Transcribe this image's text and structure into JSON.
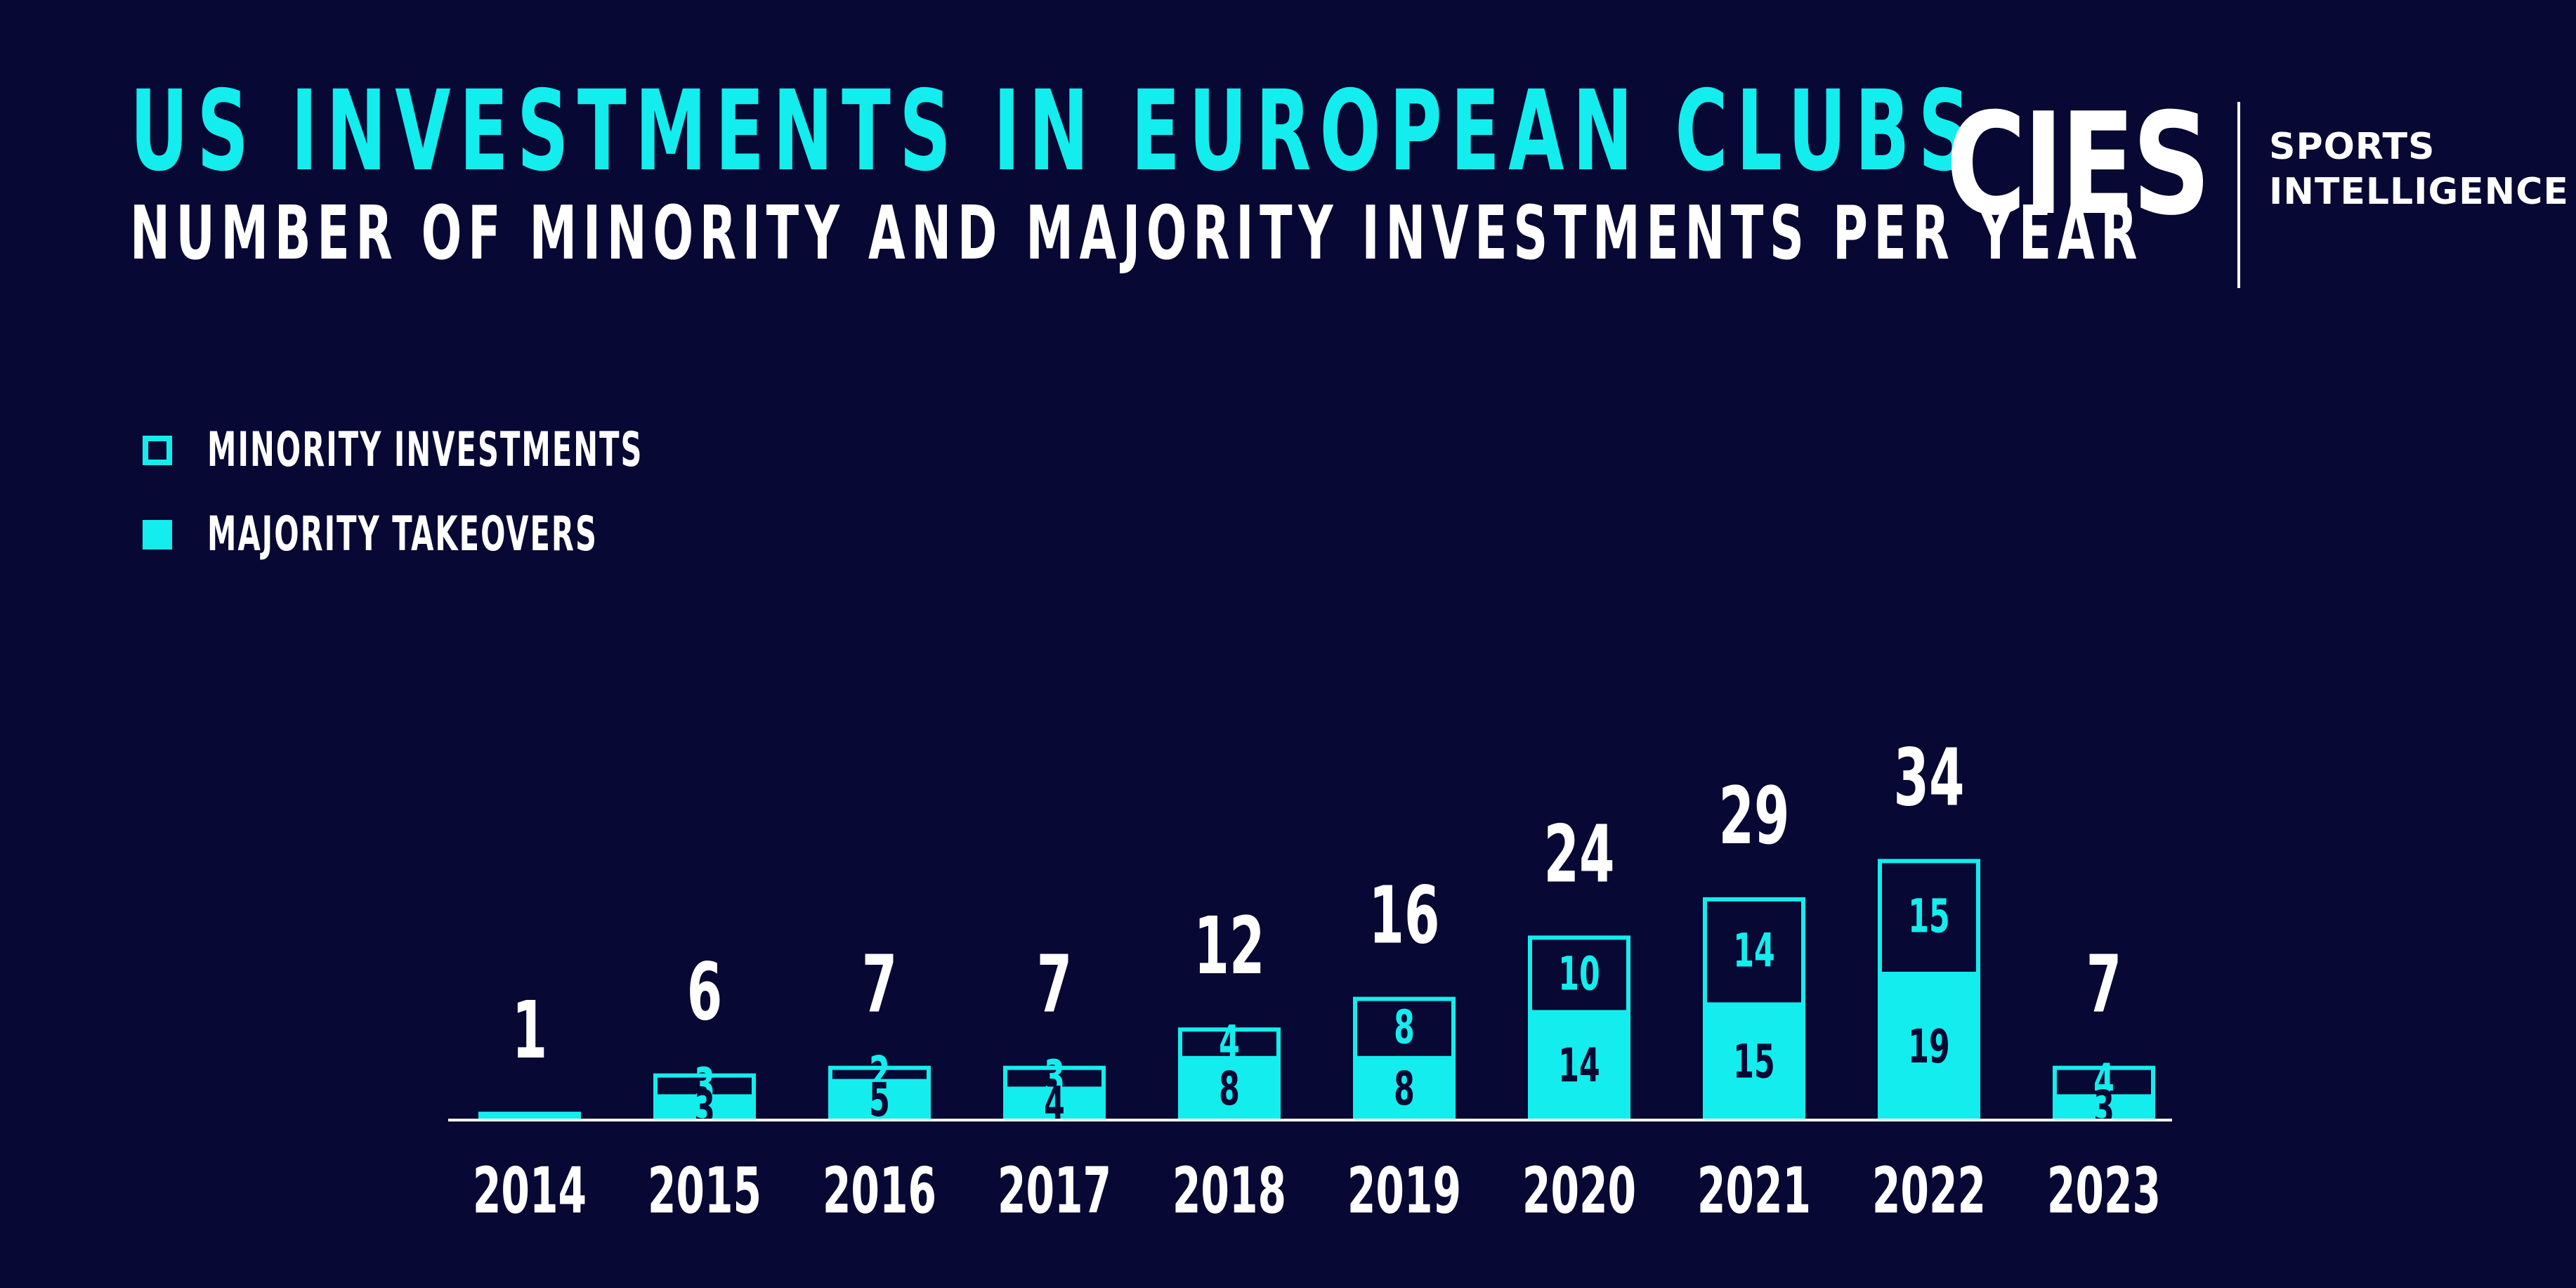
{
  "header": {
    "title": "US INVESTMENTS IN EUROPEAN CLUBS",
    "subtitle": "NUMBER OF MINORITY AND MAJORITY INVESTMENTS PER YEAR"
  },
  "logo": {
    "wordmark": "CIES",
    "tag_line1": "SPORTS",
    "tag_line2": "INTELLIGENCE"
  },
  "legend": {
    "minority": "MINORITY INVESTMENTS",
    "majority": "MAJORITY TAKEOVERS"
  },
  "colors": {
    "background": "#070833",
    "accent": "#14eded",
    "text": "#ffffff",
    "dark_text": "#070833"
  },
  "chart_data": {
    "type": "bar",
    "stacked": true,
    "title": "US INVESTMENTS IN EUROPEAN CLUBS",
    "subtitle": "NUMBER OF MINORITY AND MAJORITY INVESTMENTS PER YEAR",
    "categories": [
      "2014",
      "2015",
      "2016",
      "2017",
      "2018",
      "2019",
      "2020",
      "2021",
      "2022",
      "2023"
    ],
    "series": [
      {
        "name": "MAJORITY TAKEOVERS",
        "style": "filled",
        "values": [
          1,
          3,
          5,
          4,
          8,
          8,
          14,
          15,
          19,
          3
        ]
      },
      {
        "name": "MINORITY INVESTMENTS",
        "style": "outline",
        "values": [
          0,
          3,
          2,
          3,
          4,
          8,
          10,
          14,
          15,
          4
        ]
      }
    ],
    "totals": [
      1,
      6,
      7,
      7,
      12,
      16,
      24,
      29,
      34,
      7
    ],
    "ylim": [
      0,
      34
    ],
    "grid": false,
    "legend_position": "top-left"
  }
}
